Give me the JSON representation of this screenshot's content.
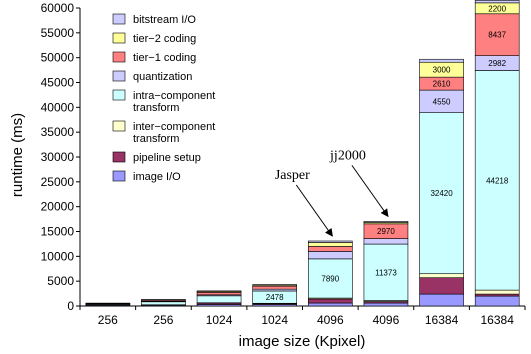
{
  "chart_data": {
    "type": "bar",
    "stacked": true,
    "xlabel": "image size (Kpixel)",
    "ylabel": "runtime (ms)",
    "ylim": [
      0,
      60000
    ],
    "yticks": [
      0,
      5000,
      10000,
      15000,
      20000,
      25000,
      30000,
      35000,
      40000,
      45000,
      50000,
      55000,
      60000
    ],
    "categories": [
      "256",
      "256",
      "1024",
      "1024",
      "4096",
      "4096",
      "16384",
      "16384"
    ],
    "legend_placement": "top-left",
    "series": [
      {
        "name": "image I/O",
        "color": "#9999ff",
        "values": [
          150,
          150,
          300,
          300,
          600,
          600,
          2400,
          2000
        ]
      },
      {
        "name": "pipeline setup",
        "color": "#993366",
        "values": [
          100,
          80,
          300,
          200,
          800,
          300,
          3300,
          400
        ]
      },
      {
        "name": "inter-component transform",
        "color": "#ffffcc",
        "values": [
          20,
          20,
          50,
          50,
          200,
          200,
          800,
          800
        ]
      },
      {
        "name": "intra-component transform",
        "color": "#ccffff",
        "values": [
          150,
          600,
          1400,
          2478,
          7890,
          11373,
          32420,
          44218
        ]
      },
      {
        "name": "quantization",
        "color": "#ccccff",
        "values": [
          30,
          130,
          200,
          360,
          1500,
          1100,
          4550,
          2982
        ]
      },
      {
        "name": "tier-1 coding",
        "color": "#ff8080",
        "values": [
          60,
          220,
          500,
          600,
          1000,
          2970,
          2610,
          8437
        ]
      },
      {
        "name": "tier-2 coding",
        "color": "#ffff99",
        "values": [
          40,
          60,
          200,
          200,
          800,
          300,
          3000,
          2200
        ]
      },
      {
        "name": "bitstream I/O",
        "color": "#ccccff",
        "values": [
          30,
          40,
          100,
          120,
          300,
          200,
          600,
          500
        ]
      }
    ],
    "data_labels": [
      {
        "bar": 3,
        "series": 3,
        "text": "2478"
      },
      {
        "bar": 4,
        "series": 3,
        "text": "7890"
      },
      {
        "bar": 5,
        "series": 3,
        "text": "11373"
      },
      {
        "bar": 5,
        "series": 5,
        "text": "2970"
      },
      {
        "bar": 6,
        "series": 3,
        "text": "32420"
      },
      {
        "bar": 6,
        "series": 4,
        "text": "4550"
      },
      {
        "bar": 6,
        "series": 5,
        "text": "2610"
      },
      {
        "bar": 6,
        "series": 6,
        "text": "3000"
      },
      {
        "bar": 7,
        "series": 3,
        "text": "44218"
      },
      {
        "bar": 7,
        "series": 4,
        "text": "2982"
      },
      {
        "bar": 7,
        "series": 5,
        "text": "8437"
      },
      {
        "bar": 7,
        "series": 6,
        "text": "2200"
      }
    ],
    "legend": [
      {
        "label": "bitstream I/O",
        "color": "#ccccff"
      },
      {
        "label": "tier−2 coding",
        "color": "#ffff99"
      },
      {
        "label": "tier−1 coding",
        "color": "#ff8080"
      },
      {
        "label": "quantization",
        "color": "#ccccff"
      },
      {
        "label": "intra−component\ntransform",
        "color": "#ccffff"
      },
      {
        "label": "inter−component\ntransform",
        "color": "#ffffcc"
      },
      {
        "label": "pipeline setup",
        "color": "#993366"
      },
      {
        "label": "image I/O",
        "color": "#9999ff"
      }
    ],
    "annotations": [
      {
        "text": "Jasper",
        "bar": 4
      },
      {
        "text": "jj2000",
        "bar": 5
      }
    ]
  }
}
